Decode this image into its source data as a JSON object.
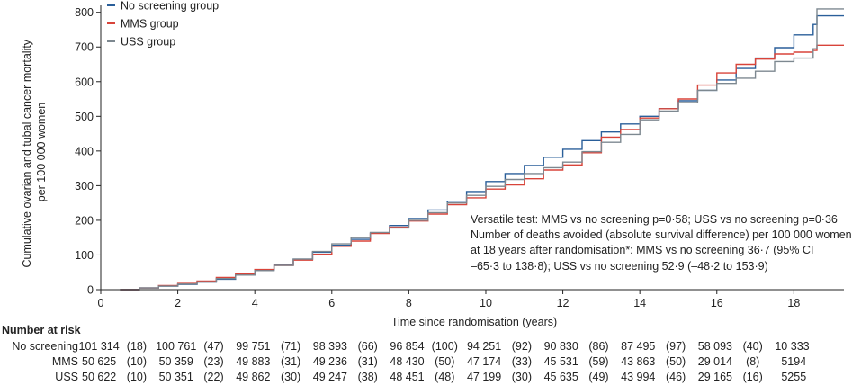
{
  "chart_data": {
    "type": "line",
    "ylabel_line1": "Cumulative ovarian and tubal cancer mortality",
    "ylabel_line2": "per 100 000 women",
    "xlabel": "Time since randomisation (years)",
    "xlim": [
      0,
      19.3
    ],
    "ylim": [
      0,
      820
    ],
    "xticks": [
      0,
      2,
      4,
      6,
      8,
      10,
      12,
      14,
      16,
      18
    ],
    "yticks": [
      0,
      100,
      200,
      300,
      400,
      500,
      600,
      700,
      800
    ],
    "legend_position": "top-left",
    "series": [
      {
        "name": "No screening group",
        "color": "#2a5f9a",
        "points": [
          [
            0.5,
            0
          ],
          [
            1,
            5
          ],
          [
            1.5,
            10
          ],
          [
            2,
            15
          ],
          [
            2.5,
            22
          ],
          [
            3,
            30
          ],
          [
            3.5,
            42
          ],
          [
            4,
            57
          ],
          [
            4.5,
            72
          ],
          [
            5,
            88
          ],
          [
            5.5,
            108
          ],
          [
            6,
            128
          ],
          [
            6.5,
            145
          ],
          [
            7,
            163
          ],
          [
            7.5,
            185
          ],
          [
            8,
            205
          ],
          [
            8.5,
            230
          ],
          [
            9,
            255
          ],
          [
            9.5,
            283
          ],
          [
            10,
            312
          ],
          [
            10.5,
            335
          ],
          [
            11,
            358
          ],
          [
            11.5,
            382
          ],
          [
            12,
            405
          ],
          [
            12.5,
            430
          ],
          [
            13,
            455
          ],
          [
            13.5,
            478
          ],
          [
            14,
            500
          ],
          [
            14.5,
            522
          ],
          [
            15,
            545
          ],
          [
            15.5,
            575
          ],
          [
            16,
            605
          ],
          [
            16.5,
            638
          ],
          [
            17,
            668
          ],
          [
            17.5,
            698
          ],
          [
            18,
            735
          ],
          [
            18.5,
            765
          ],
          [
            18.6,
            790
          ],
          [
            19.3,
            790
          ]
        ]
      },
      {
        "name": "MMS group",
        "color": "#d8443a",
        "points": [
          [
            0.5,
            0
          ],
          [
            1,
            5
          ],
          [
            1.5,
            12
          ],
          [
            2,
            18
          ],
          [
            2.5,
            25
          ],
          [
            3,
            35
          ],
          [
            3.5,
            45
          ],
          [
            4,
            58
          ],
          [
            4.5,
            70
          ],
          [
            5,
            85
          ],
          [
            5.5,
            102
          ],
          [
            6,
            125
          ],
          [
            6.5,
            140
          ],
          [
            7,
            162
          ],
          [
            7.5,
            180
          ],
          [
            8,
            198
          ],
          [
            8.5,
            218
          ],
          [
            9,
            245
          ],
          [
            9.5,
            265
          ],
          [
            10,
            290
          ],
          [
            10.5,
            302
          ],
          [
            11,
            320
          ],
          [
            11.5,
            345
          ],
          [
            12,
            360
          ],
          [
            12.5,
            395
          ],
          [
            13,
            440
          ],
          [
            13.5,
            462
          ],
          [
            14,
            495
          ],
          [
            14.5,
            522
          ],
          [
            15,
            550
          ],
          [
            15.5,
            590
          ],
          [
            16,
            625
          ],
          [
            16.5,
            650
          ],
          [
            17,
            665
          ],
          [
            17.5,
            680
          ],
          [
            18,
            685
          ],
          [
            18.5,
            690
          ],
          [
            18.6,
            705
          ],
          [
            19.3,
            705
          ]
        ]
      },
      {
        "name": "USS group",
        "color": "#7d8890",
        "points": [
          [
            0.5,
            0
          ],
          [
            1,
            5
          ],
          [
            1.5,
            10
          ],
          [
            2,
            16
          ],
          [
            2.5,
            22
          ],
          [
            3,
            32
          ],
          [
            3.5,
            42
          ],
          [
            4,
            55
          ],
          [
            4.5,
            70
          ],
          [
            5,
            88
          ],
          [
            5.5,
            110
          ],
          [
            6,
            132
          ],
          [
            6.5,
            150
          ],
          [
            7,
            165
          ],
          [
            7.5,
            178
          ],
          [
            8,
            200
          ],
          [
            8.5,
            222
          ],
          [
            9,
            250
          ],
          [
            9.5,
            272
          ],
          [
            10,
            298
          ],
          [
            10.5,
            318
          ],
          [
            11,
            335
          ],
          [
            11.5,
            352
          ],
          [
            12,
            368
          ],
          [
            12.5,
            398
          ],
          [
            13,
            425
          ],
          [
            13.5,
            448
          ],
          [
            14,
            490
          ],
          [
            14.5,
            515
          ],
          [
            15,
            540
          ],
          [
            15.5,
            575
          ],
          [
            16,
            595
          ],
          [
            16.5,
            610
          ],
          [
            17,
            630
          ],
          [
            17.5,
            658
          ],
          [
            18,
            668
          ],
          [
            18.5,
            695
          ],
          [
            18.6,
            810
          ],
          [
            19.3,
            810
          ]
        ]
      }
    ],
    "annotation_lines": [
      "Versatile test: MMS vs no screening p=0·58; USS vs no screening p=0·36",
      "Number of deaths avoided (absolute survival difference) per 100 000 women",
      "at 18 years after randomisation*: MMS vs no screening 36·7 (95% CI",
      "–65·3 to 138·8); USS vs no screening 52·9 (–48·2 to 153·9)"
    ],
    "risk_table": {
      "title": "Number at risk",
      "rows": [
        {
          "label": "No screening",
          "values": [
            "101 314",
            "(18)",
            "100 761",
            "(47)",
            "99 751",
            "(71)",
            "98 393",
            "(66)",
            "96 854",
            "(100)",
            "94 251",
            "(92)",
            "90 830",
            "(86)",
            "87 495",
            "(97)",
            "58 093",
            "(40)",
            "10 333"
          ]
        },
        {
          "label": "MMS",
          "values": [
            "50 625",
            "(10)",
            "50 359",
            "(23)",
            "49 883",
            "(31)",
            "49 236",
            "(31)",
            "48 430",
            "(50)",
            "47 174",
            "(33)",
            "45 531",
            "(59)",
            "43 863",
            "(50)",
            "29 014",
            "(8)",
            "5194"
          ]
        },
        {
          "label": "USS",
          "values": [
            "50 622",
            "(10)",
            "50 351",
            "(22)",
            "49 862",
            "(30)",
            "49 247",
            "(38)",
            "48 451",
            "(48)",
            "47 199",
            "(30)",
            "45 635",
            "(49)",
            "43 994",
            "(46)",
            "29 165",
            "(16)",
            "5255"
          ]
        }
      ]
    }
  }
}
